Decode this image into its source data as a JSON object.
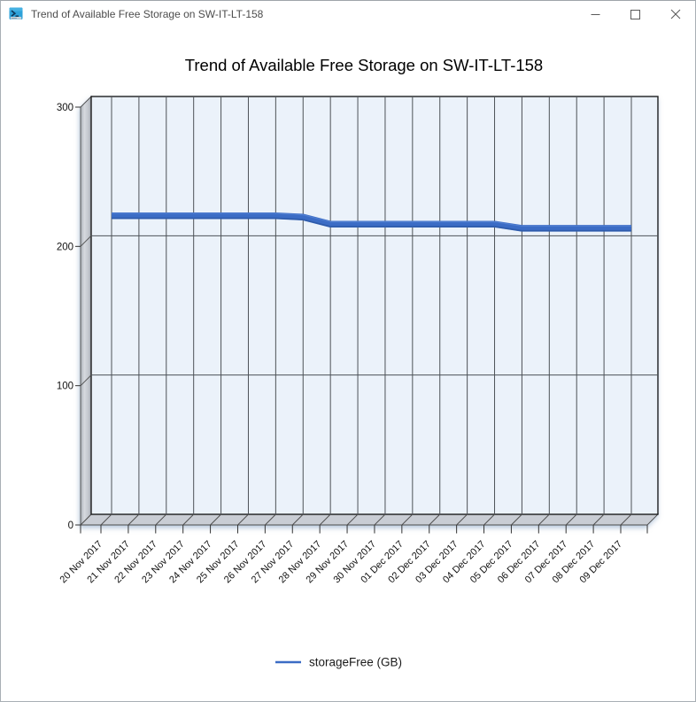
{
  "window": {
    "title": "Trend of Available Free Storage on SW-IT-LT-158",
    "icons": {
      "app": "powershell-console-app-icon",
      "minimize": "minimize-icon",
      "maximize": "maximize-icon",
      "close": "close-icon"
    }
  },
  "chart": {
    "title": "Trend of Available Free Storage on SW-IT-LT-158",
    "legend_label": "storageFree (GB)"
  },
  "chart_data": {
    "type": "line",
    "style_3d": true,
    "title": "Trend of Available Free Storage on SW-IT-LT-158",
    "categories": [
      "20 Nov 2017",
      "21 Nov 2017",
      "22 Nov 2017",
      "23 Nov 2017",
      "24 Nov 2017",
      "25 Nov 2017",
      "26 Nov 2017",
      "27 Nov 2017",
      "28 Nov 2017",
      "29 Nov 2017",
      "30 Nov 2017",
      "01 Dec 2017",
      "02 Dec 2017",
      "03 Dec 2017",
      "04 Dec 2017",
      "05 Dec 2017",
      "06 Dec 2017",
      "07 Dec 2017",
      "08 Dec 2017",
      "09 Dec 2017"
    ],
    "series": [
      {
        "name": "storageFree (GB)",
        "color": "#3B6CC5",
        "values": [
          222,
          222,
          222,
          222,
          222,
          222,
          222,
          221,
          216,
          216,
          216,
          216,
          216,
          216,
          216,
          213,
          213,
          213,
          213,
          213
        ]
      }
    ],
    "xlabel": "",
    "ylabel": "",
    "ylim": [
      0,
      300
    ],
    "yticks": [
      0,
      100,
      200,
      300
    ],
    "grid": true,
    "legend_position": "bottom",
    "plot_bg": "#EBF2FA",
    "wall_color": "#C9CDD4",
    "grid_color": "#4D5257"
  }
}
